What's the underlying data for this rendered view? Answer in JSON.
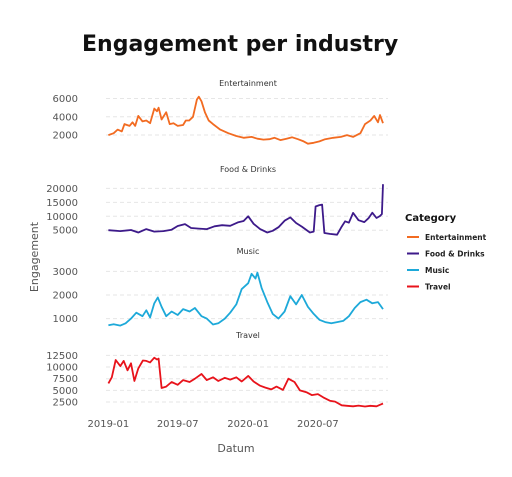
{
  "chart_data": {
    "type": "line",
    "title": "Engagement per industry",
    "xlabel": "Datum",
    "ylabel": "Engagement",
    "x_ticks": [
      "2019-01",
      "2019-07",
      "2020-01",
      "2020-07"
    ],
    "x_range": [
      "2018-12-31",
      "2020-12-31"
    ],
    "legend": {
      "title": "Category",
      "position": "right"
    },
    "grid": "horizontal dashed",
    "panels": [
      {
        "name": "Entertainment",
        "color": "#f26b21",
        "ylim": [
          800,
          6500
        ],
        "y_ticks": [
          2000,
          4000,
          6000
        ],
        "points": [
          [
            "2019-01-01",
            2000
          ],
          [
            "2019-01-15",
            2200
          ],
          [
            "2019-01-25",
            2600
          ],
          [
            "2019-02-05",
            2400
          ],
          [
            "2019-02-12",
            3200
          ],
          [
            "2019-02-25",
            3000
          ],
          [
            "2019-03-05",
            3400
          ],
          [
            "2019-03-12",
            3000
          ],
          [
            "2019-03-20",
            4100
          ],
          [
            "2019-03-31",
            3500
          ],
          [
            "2019-04-10",
            3600
          ],
          [
            "2019-04-20",
            3300
          ],
          [
            "2019-05-01",
            4900
          ],
          [
            "2019-05-08",
            4600
          ],
          [
            "2019-05-12",
            5000
          ],
          [
            "2019-05-20",
            3700
          ],
          [
            "2019-06-01",
            4500
          ],
          [
            "2019-06-10",
            3200
          ],
          [
            "2019-06-20",
            3300
          ],
          [
            "2019-07-01",
            3000
          ],
          [
            "2019-07-15",
            3100
          ],
          [
            "2019-07-22",
            3600
          ],
          [
            "2019-07-31",
            3600
          ],
          [
            "2019-08-10",
            4000
          ],
          [
            "2019-08-20",
            5900
          ],
          [
            "2019-08-25",
            6200
          ],
          [
            "2019-09-01",
            5700
          ],
          [
            "2019-09-10",
            4500
          ],
          [
            "2019-09-20",
            3600
          ],
          [
            "2019-10-01",
            3200
          ],
          [
            "2019-10-20",
            2600
          ],
          [
            "2019-11-10",
            2200
          ],
          [
            "2019-12-01",
            1900
          ],
          [
            "2019-12-20",
            1700
          ],
          [
            "2020-01-10",
            1800
          ],
          [
            "2020-01-25",
            1600
          ],
          [
            "2020-02-10",
            1500
          ],
          [
            "2020-02-25",
            1550
          ],
          [
            "2020-03-10",
            1700
          ],
          [
            "2020-03-25",
            1450
          ],
          [
            "2020-04-10",
            1600
          ],
          [
            "2020-04-25",
            1750
          ],
          [
            "2020-05-10",
            1550
          ],
          [
            "2020-05-25",
            1300
          ],
          [
            "2020-06-05",
            1050
          ],
          [
            "2020-06-20",
            1150
          ],
          [
            "2020-07-05",
            1300
          ],
          [
            "2020-07-20",
            1550
          ],
          [
            "2020-08-10",
            1700
          ],
          [
            "2020-08-30",
            1800
          ],
          [
            "2020-09-15",
            2000
          ],
          [
            "2020-10-01",
            1800
          ],
          [
            "2020-10-20",
            2200
          ],
          [
            "2020-11-01",
            3200
          ],
          [
            "2020-11-15",
            3600
          ],
          [
            "2020-11-25",
            4100
          ],
          [
            "2020-12-05",
            3400
          ],
          [
            "2020-12-10",
            4200
          ],
          [
            "2020-12-18",
            3300
          ]
        ]
      },
      {
        "name": "Food & Drinks",
        "color": "#3d1a8a",
        "ylim": [
          1500,
          23000
        ],
        "y_ticks": [
          5000,
          10000,
          15000,
          20000
        ],
        "points": [
          [
            "2019-01-01",
            5000
          ],
          [
            "2019-02-01",
            4700
          ],
          [
            "2019-03-01",
            5100
          ],
          [
            "2019-03-20",
            4200
          ],
          [
            "2019-04-10",
            5400
          ],
          [
            "2019-05-01",
            4500
          ],
          [
            "2019-05-25",
            4700
          ],
          [
            "2019-06-15",
            5200
          ],
          [
            "2019-07-01",
            6500
          ],
          [
            "2019-07-20",
            7200
          ],
          [
            "2019-08-05",
            5800
          ],
          [
            "2019-08-25",
            5600
          ],
          [
            "2019-09-15",
            5400
          ],
          [
            "2019-10-05",
            6400
          ],
          [
            "2019-10-25",
            6800
          ],
          [
            "2019-11-15",
            6600
          ],
          [
            "2019-12-05",
            7800
          ],
          [
            "2019-12-20",
            8300
          ],
          [
            "2020-01-01",
            10000
          ],
          [
            "2020-01-15",
            7300
          ],
          [
            "2020-02-01",
            5400
          ],
          [
            "2020-02-20",
            4200
          ],
          [
            "2020-03-05",
            4800
          ],
          [
            "2020-03-20",
            6100
          ],
          [
            "2020-04-05",
            8400
          ],
          [
            "2020-04-20",
            9600
          ],
          [
            "2020-05-05",
            7600
          ],
          [
            "2020-05-20",
            6300
          ],
          [
            "2020-06-10",
            4200
          ],
          [
            "2020-06-20",
            4500
          ],
          [
            "2020-06-25",
            13500
          ],
          [
            "2020-07-05",
            14000
          ],
          [
            "2020-07-12",
            14200
          ],
          [
            "2020-07-18",
            4000
          ],
          [
            "2020-08-01",
            3700
          ],
          [
            "2020-08-20",
            3400
          ],
          [
            "2020-09-01",
            6300
          ],
          [
            "2020-09-10",
            8200
          ],
          [
            "2020-09-20",
            7700
          ],
          [
            "2020-10-01",
            11200
          ],
          [
            "2020-10-15",
            8600
          ],
          [
            "2020-10-30",
            7900
          ],
          [
            "2020-11-10",
            9300
          ],
          [
            "2020-11-20",
            11300
          ],
          [
            "2020-12-01",
            9400
          ],
          [
            "2020-12-10",
            10100
          ],
          [
            "2020-12-15",
            10800
          ],
          [
            "2020-12-18",
            21500
          ]
        ]
      },
      {
        "name": "Music",
        "color": "#1da9d9",
        "ylim": [
          600,
          3400
        ],
        "y_ticks": [
          1000,
          2000,
          3000
        ],
        "points": [
          [
            "2019-01-01",
            720
          ],
          [
            "2019-01-15",
            760
          ],
          [
            "2019-02-01",
            700
          ],
          [
            "2019-02-15",
            800
          ],
          [
            "2019-03-01",
            1000
          ],
          [
            "2019-03-15",
            1250
          ],
          [
            "2019-03-31",
            1100
          ],
          [
            "2019-04-10",
            1350
          ],
          [
            "2019-04-20",
            1050
          ],
          [
            "2019-05-01",
            1650
          ],
          [
            "2019-05-10",
            1900
          ],
          [
            "2019-05-20",
            1500
          ],
          [
            "2019-06-01",
            1100
          ],
          [
            "2019-06-15",
            1300
          ],
          [
            "2019-07-01",
            1150
          ],
          [
            "2019-07-15",
            1400
          ],
          [
            "2019-08-01",
            1300
          ],
          [
            "2019-08-15",
            1450
          ],
          [
            "2019-09-01",
            1100
          ],
          [
            "2019-09-15",
            1000
          ],
          [
            "2019-10-01",
            750
          ],
          [
            "2019-10-15",
            800
          ],
          [
            "2019-11-01",
            1000
          ],
          [
            "2019-11-15",
            1250
          ],
          [
            "2019-12-01",
            1600
          ],
          [
            "2019-12-15",
            2250
          ],
          [
            "2020-01-01",
            2500
          ],
          [
            "2020-01-10",
            2900
          ],
          [
            "2020-01-20",
            2700
          ],
          [
            "2020-01-25",
            2950
          ],
          [
            "2020-02-05",
            2300
          ],
          [
            "2020-02-20",
            1700
          ],
          [
            "2020-03-05",
            1200
          ],
          [
            "2020-03-20",
            1000
          ],
          [
            "2020-04-05",
            1300
          ],
          [
            "2020-04-20",
            1950
          ],
          [
            "2020-05-05",
            1600
          ],
          [
            "2020-05-20",
            2000
          ],
          [
            "2020-06-05",
            1500
          ],
          [
            "2020-06-20",
            1200
          ],
          [
            "2020-07-05",
            950
          ],
          [
            "2020-07-20",
            850
          ],
          [
            "2020-08-05",
            800
          ],
          [
            "2020-08-20",
            850
          ],
          [
            "2020-09-05",
            900
          ],
          [
            "2020-09-20",
            1100
          ],
          [
            "2020-10-05",
            1450
          ],
          [
            "2020-10-20",
            1700
          ],
          [
            "2020-11-05",
            1800
          ],
          [
            "2020-11-20",
            1650
          ],
          [
            "2020-12-05",
            1700
          ],
          [
            "2020-12-18",
            1400
          ]
        ]
      },
      {
        "name": "Travel",
        "color": "#e8131b",
        "ylim": [
          800,
          14500
        ],
        "y_ticks": [
          2500,
          5000,
          7500,
          10000,
          12500
        ],
        "points": [
          [
            "2019-01-01",
            6500
          ],
          [
            "2019-01-10",
            7800
          ],
          [
            "2019-01-20",
            11500
          ],
          [
            "2019-02-01",
            10200
          ],
          [
            "2019-02-10",
            11300
          ],
          [
            "2019-02-20",
            9300
          ],
          [
            "2019-03-01",
            10800
          ],
          [
            "2019-03-10",
            7000
          ],
          [
            "2019-03-20",
            9700
          ],
          [
            "2019-04-01",
            11400
          ],
          [
            "2019-04-10",
            11300
          ],
          [
            "2019-04-20",
            11000
          ],
          [
            "2019-05-01",
            12000
          ],
          [
            "2019-05-08",
            11600
          ],
          [
            "2019-05-12",
            11800
          ],
          [
            "2019-05-20",
            5500
          ],
          [
            "2019-06-01",
            5800
          ],
          [
            "2019-06-15",
            6800
          ],
          [
            "2019-07-01",
            6200
          ],
          [
            "2019-07-15",
            7200
          ],
          [
            "2019-08-01",
            6800
          ],
          [
            "2019-08-15",
            7500
          ],
          [
            "2019-09-01",
            8500
          ],
          [
            "2019-09-15",
            7200
          ],
          [
            "2019-10-01",
            7800
          ],
          [
            "2019-10-15",
            7000
          ],
          [
            "2019-11-01",
            7700
          ],
          [
            "2019-11-15",
            7300
          ],
          [
            "2019-12-01",
            7800
          ],
          [
            "2019-12-15",
            6900
          ],
          [
            "2020-01-01",
            8100
          ],
          [
            "2020-01-15",
            6900
          ],
          [
            "2020-02-01",
            6000
          ],
          [
            "2020-02-15",
            5600
          ],
          [
            "2020-03-01",
            5200
          ],
          [
            "2020-03-15",
            5800
          ],
          [
            "2020-04-01",
            5100
          ],
          [
            "2020-04-15",
            7500
          ],
          [
            "2020-05-01",
            6800
          ],
          [
            "2020-05-15",
            5000
          ],
          [
            "2020-06-01",
            4600
          ],
          [
            "2020-06-15",
            4000
          ],
          [
            "2020-07-01",
            4200
          ],
          [
            "2020-07-15",
            3500
          ],
          [
            "2020-08-01",
            2800
          ],
          [
            "2020-08-15",
            2600
          ],
          [
            "2020-09-01",
            1800
          ],
          [
            "2020-09-15",
            1700
          ],
          [
            "2020-10-01",
            1600
          ],
          [
            "2020-10-15",
            1750
          ],
          [
            "2020-11-01",
            1550
          ],
          [
            "2020-11-15",
            1700
          ],
          [
            "2020-12-01",
            1600
          ],
          [
            "2020-12-18",
            2200
          ]
        ]
      }
    ]
  }
}
